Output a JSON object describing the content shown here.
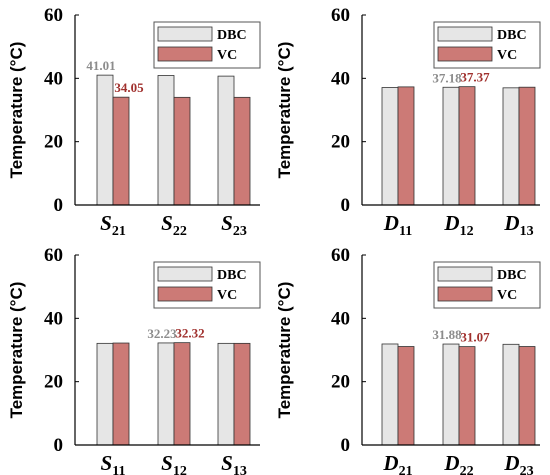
{
  "colors": {
    "dbc_fill": "#e6e6e6",
    "vc_fill": "#cc7a76",
    "bar_stroke": "#333333",
    "dbc_label": "#8c8c8c",
    "vc_label": "#a0302d",
    "axis": "#000000"
  },
  "chart_data": [
    {
      "type": "bar",
      "ylabel": "Temperature (°C)",
      "ylim": [
        0,
        60
      ],
      "yticks": [
        "0",
        "20",
        "40",
        "60"
      ],
      "categories": [
        {
          "base": "S",
          "sub": "21"
        },
        {
          "base": "S",
          "sub": "22"
        },
        {
          "base": "S",
          "sub": "23"
        }
      ],
      "series": [
        {
          "name": "DBC",
          "values": [
            41.01,
            40.9,
            40.7
          ]
        },
        {
          "name": "VC",
          "values": [
            34.05,
            34.0,
            34.0
          ]
        }
      ],
      "data_labels": [
        {
          "category": 0,
          "series": 0,
          "text": "41.01"
        },
        {
          "category": 0,
          "series": 1,
          "text": "34.05"
        }
      ],
      "legend": "top-right"
    },
    {
      "type": "bar",
      "ylabel": "Temperature (°C)",
      "ylim": [
        0,
        60
      ],
      "yticks": [
        "0",
        "20",
        "40",
        "60"
      ],
      "categories": [
        {
          "base": "D",
          "sub": "11"
        },
        {
          "base": "D",
          "sub": "12"
        },
        {
          "base": "D",
          "sub": "13"
        }
      ],
      "series": [
        {
          "name": "DBC",
          "values": [
            37.1,
            37.18,
            37.0
          ]
        },
        {
          "name": "VC",
          "values": [
            37.3,
            37.37,
            37.2
          ]
        }
      ],
      "data_labels": [
        {
          "category": 1,
          "series": 0,
          "text": "37.18"
        },
        {
          "category": 1,
          "series": 1,
          "text": "37.37"
        }
      ],
      "legend": "top-right"
    },
    {
      "type": "bar",
      "ylabel": "Temperature (°C)",
      "ylim": [
        0,
        60
      ],
      "yticks": [
        "0",
        "20",
        "40",
        "60"
      ],
      "categories": [
        {
          "base": "S",
          "sub": "11"
        },
        {
          "base": "S",
          "sub": "12"
        },
        {
          "base": "S",
          "sub": "13"
        }
      ],
      "series": [
        {
          "name": "DBC",
          "values": [
            32.1,
            32.23,
            32.1
          ]
        },
        {
          "name": "VC",
          "values": [
            32.2,
            32.32,
            32.1
          ]
        }
      ],
      "data_labels": [
        {
          "category": 1,
          "series": 0,
          "text": "32.23"
        },
        {
          "category": 1,
          "series": 1,
          "text": "32.32"
        }
      ],
      "legend": "top-right"
    },
    {
      "type": "bar",
      "ylabel": "Temperature (°C)",
      "ylim": [
        0,
        60
      ],
      "yticks": [
        "0",
        "20",
        "40",
        "60"
      ],
      "categories": [
        {
          "base": "D",
          "sub": "21"
        },
        {
          "base": "D",
          "sub": "22"
        },
        {
          "base": "D",
          "sub": "23"
        }
      ],
      "series": [
        {
          "name": "DBC",
          "values": [
            31.9,
            31.88,
            31.8
          ]
        },
        {
          "name": "VC",
          "values": [
            31.1,
            31.07,
            31.1
          ]
        }
      ],
      "data_labels": [
        {
          "category": 1,
          "series": 0,
          "text": "31.88"
        },
        {
          "category": 1,
          "series": 1,
          "text": "31.07"
        }
      ],
      "legend": "top-right"
    }
  ]
}
